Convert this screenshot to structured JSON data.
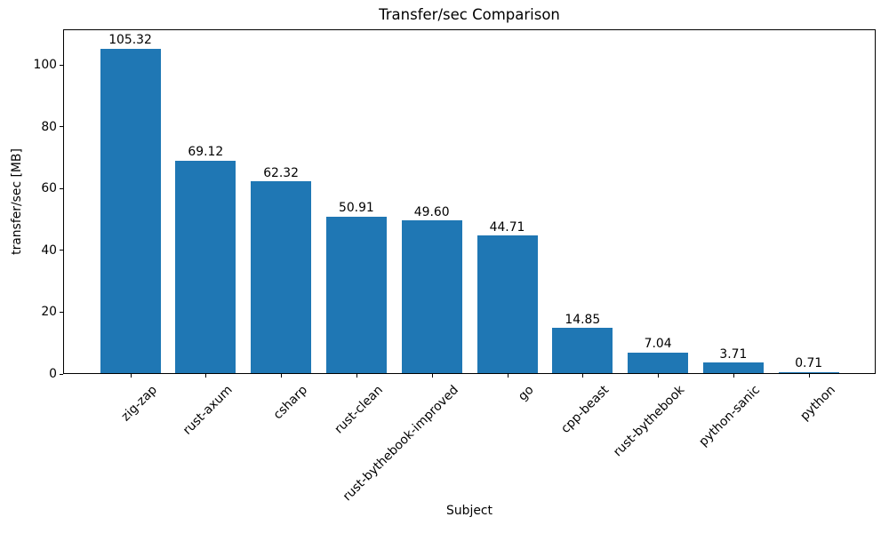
{
  "chart_data": {
    "type": "bar",
    "title": "Transfer/sec Comparison",
    "xlabel": "Subject",
    "ylabel": "transfer/sec [MB]",
    "categories": [
      "zig-zap",
      "rust-axum",
      "csharp",
      "rust-clean",
      "rust-bythebook-improved",
      "go",
      "cpp-beast",
      "rust-bythebook",
      "python-sanic",
      "python"
    ],
    "values": [
      105.32,
      69.12,
      62.32,
      50.91,
      49.6,
      44.71,
      14.85,
      7.04,
      3.71,
      0.71
    ],
    "value_labels": [
      "105.32",
      "69.12",
      "62.32",
      "50.91",
      "49.60",
      "44.71",
      "14.85",
      "7.04",
      "3.71",
      "0.71"
    ],
    "ytick_labels": [
      "0",
      "20",
      "40",
      "60",
      "80",
      "100"
    ],
    "yticks": [
      0,
      20,
      40,
      60,
      80,
      100
    ],
    "ylim": [
      0,
      111.5
    ],
    "bar_color": "#1f77b4",
    "axis_color": "#000000",
    "text_color": "#000000",
    "background_color": "#ffffff",
    "grid": false,
    "legend": null,
    "xtick_rotation_deg": 45
  }
}
